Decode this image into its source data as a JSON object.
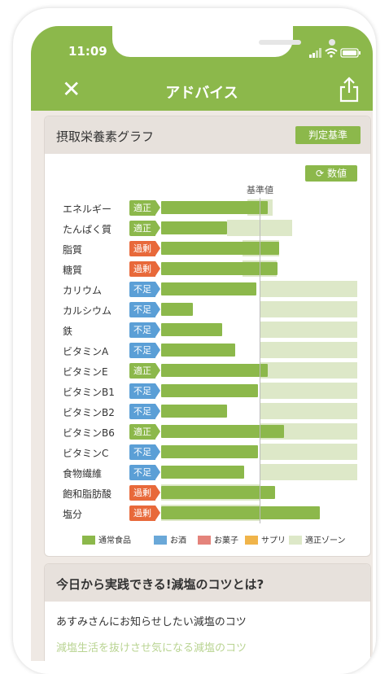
{
  "status": {
    "time": "11:09"
  },
  "header": {
    "title": "アドバイス"
  },
  "graph": {
    "title": "摂取栄養素グラフ",
    "criteria_button": "判定基準",
    "values_button": "数値",
    "baseline_label": "基準値"
  },
  "colors": {
    "normal": "#8cb84b",
    "alcohol": "#6aa8d8",
    "snack": "#e4837b",
    "supplement": "#f0b44a",
    "zone": "#dde8c8",
    "excess": "#e8693a",
    "deficient": "#5b9fd6",
    "appropriate": "#8cb84b"
  },
  "nutrients": [
    {
      "name": "エネルギー",
      "status": "適正",
      "value": 1.08,
      "zone": [
        0.88,
        1.13
      ]
    },
    {
      "name": "たんぱく質",
      "status": "適正",
      "value": 0.67,
      "zone": [
        0.67,
        1.33
      ]
    },
    {
      "name": "脂質",
      "status": "過剰",
      "value": 1.2,
      "zone": [
        0.83,
        1.2
      ]
    },
    {
      "name": "糖質",
      "status": "過剰",
      "value": 1.18,
      "zone": [
        0.83,
        1.17
      ]
    },
    {
      "name": "カリウム",
      "status": "不足",
      "value": 0.97,
      "zone": [
        1.0,
        2.0
      ]
    },
    {
      "name": "カルシウム",
      "status": "不足",
      "value": 0.32,
      "zone": [
        1.0,
        2.0
      ]
    },
    {
      "name": "鉄",
      "status": "不足",
      "value": 0.62,
      "zone": [
        1.0,
        2.0
      ]
    },
    {
      "name": "ビタミンA",
      "status": "不足",
      "value": 0.75,
      "zone": [
        1.0,
        2.0
      ]
    },
    {
      "name": "ビタミンE",
      "status": "適正",
      "value": 1.08,
      "zone": [
        1.0,
        2.0
      ]
    },
    {
      "name": "ビタミンB1",
      "status": "不足",
      "value": 0.98,
      "zone": [
        1.0,
        2.0
      ]
    },
    {
      "name": "ビタミンB2",
      "status": "不足",
      "value": 0.67,
      "zone": [
        1.0,
        2.0
      ]
    },
    {
      "name": "ビタミンB6",
      "status": "適正",
      "value": 1.25,
      "zone": [
        1.0,
        2.0
      ]
    },
    {
      "name": "ビタミンC",
      "status": "不足",
      "value": 0.98,
      "zone": [
        1.0,
        2.0
      ]
    },
    {
      "name": "食物繊維",
      "status": "不足",
      "value": 0.84,
      "zone": [
        1.0,
        2.0
      ]
    },
    {
      "name": "飽和脂肪酸",
      "status": "過剰",
      "value": 1.16,
      "zone": [
        0.0,
        1.0
      ]
    },
    {
      "name": "塩分",
      "status": "過剰",
      "value": 1.61,
      "zone": [
        0.0,
        1.0
      ]
    }
  ],
  "legend": [
    {
      "label": "通常食品",
      "color": "#8cb84b"
    },
    {
      "label": "お酒",
      "color": "#6aa8d8"
    },
    {
      "label": "お菓子",
      "color": "#e4837b"
    },
    {
      "label": "サプリ",
      "color": "#f0b44a"
    },
    {
      "label": "適正ゾーン",
      "color": "#dde8c8"
    }
  ],
  "tips": {
    "title": "今日から実践できる!減塩のコツとは?",
    "subtitle": "あすみさんにお知らせしたい減塩のコツ",
    "link": "減塩生活を抜けさせ気になる減塩のコツ"
  }
}
